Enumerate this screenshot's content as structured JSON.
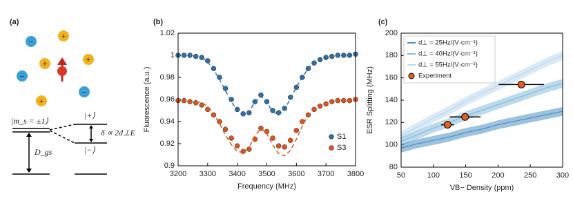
{
  "diagram": {
    "label": "(a)",
    "plus_sign": "+",
    "minus_sign": "−",
    "ground_state": "|m_s = ±1⟩",
    "upper_state": "|+⟩",
    "lower_state": "|−⟩",
    "splitting": "δ ∝ 2d⊥E",
    "zero_field": "D_gs"
  },
  "chart_data": [
    {
      "type": "scatter",
      "label": "(b)",
      "xlabel": "Frequency (MHz)",
      "ylabel": "Fluorescence (a.u.)",
      "x": [
        3200,
        3220,
        3240,
        3260,
        3280,
        3300,
        3320,
        3340,
        3360,
        3380,
        3400,
        3420,
        3440,
        3460,
        3480,
        3500,
        3520,
        3540,
        3560,
        3580,
        3600,
        3620,
        3640,
        3660,
        3680,
        3700,
        3720,
        3740,
        3760,
        3780,
        3800
      ],
      "xlim": [
        3200,
        3800
      ],
      "ylim": [
        0.9,
        1.02
      ],
      "xticks": [
        3200,
        3300,
        3400,
        3500,
        3600,
        3700,
        3800
      ],
      "yticks": [
        0.9,
        0.92,
        0.94,
        0.96,
        0.98,
        1,
        1.02
      ],
      "legend": "lower right",
      "series": [
        {
          "name": "S1",
          "color": "#2c6ea6",
          "values": [
            1.0,
            1.0,
            1.0,
            0.999,
            0.998,
            0.995,
            0.988,
            0.98,
            0.97,
            0.96,
            0.951,
            0.947,
            0.948,
            0.958,
            0.964,
            0.958,
            0.95,
            0.948,
            0.952,
            0.962,
            0.971,
            0.98,
            0.988,
            0.993,
            0.996,
            0.998,
            0.999,
            1.0,
            1.0,
            1.0,
            1.001
          ]
        },
        {
          "name": "S3",
          "color": "#d9541e",
          "values": [
            0.959,
            0.959,
            0.958,
            0.957,
            0.955,
            0.951,
            0.946,
            0.94,
            0.933,
            0.925,
            0.918,
            0.913,
            0.915,
            0.924,
            0.934,
            0.931,
            0.925,
            0.918,
            0.917,
            0.923,
            0.932,
            0.94,
            0.946,
            0.951,
            0.954,
            0.956,
            0.958,
            0.959,
            0.959,
            0.959,
            0.96
          ]
        },
        {
          "color": "#2c6ea6",
          "style": "dashed",
          "values": [
            null,
            null,
            null,
            null,
            0.998,
            0.994,
            0.987,
            0.978,
            0.968,
            0.958,
            0.95,
            0.946,
            0.949,
            0.958,
            0.963,
            0.957,
            0.949,
            0.946,
            0.951,
            0.961,
            0.971,
            0.98,
            0.988,
            0.994,
            0.997,
            0.999,
            null,
            null,
            null,
            null,
            null
          ]
        },
        {
          "color": "#d9541e",
          "style": "dashed",
          "values": [
            null,
            null,
            null,
            0.958,
            0.957,
            0.954,
            0.947,
            0.938,
            0.928,
            0.919,
            0.913,
            0.912,
            0.917,
            0.927,
            0.934,
            0.929,
            0.919,
            0.911,
            0.909,
            0.914,
            0.924,
            0.936,
            0.946,
            null,
            null,
            null,
            null,
            null,
            null,
            null,
            null
          ]
        }
      ]
    },
    {
      "type": "line",
      "label": "(c)",
      "xlabel": "VB− Density (ppm)",
      "ylabel": "ESR Splitting (MHz)",
      "x": [
        50,
        75,
        100,
        125,
        150,
        175,
        200,
        225,
        250,
        275,
        300
      ],
      "xlim": [
        50,
        300
      ],
      "ylim": [
        80,
        200
      ],
      "xticks": [
        50,
        100,
        150,
        200,
        250,
        300
      ],
      "yticks": [
        80,
        100,
        120,
        140,
        160,
        180,
        200
      ],
      "legend": "upper left",
      "series": [
        {
          "name": "d⊥ = 25Hz/(V·cm⁻¹)",
          "color": "#4a8fc2",
          "spread": 4,
          "values": [
            97,
            101,
            104,
            107,
            111,
            114,
            118,
            121,
            124,
            127,
            130
          ]
        },
        {
          "name": "d⊥ = 40Hz/(V·cm⁻¹)",
          "color": "#86b9dc",
          "spread": 4,
          "values": [
            103,
            109,
            115,
            120,
            126,
            131,
            136,
            141,
            146,
            151,
            155
          ]
        },
        {
          "name": "d⊥ = 55Hz/(V·cm⁻¹)",
          "color": "#b9d8ee",
          "spread": 4,
          "values": [
            108,
            116,
            124,
            131,
            139,
            146,
            153,
            160,
            167,
            174,
            180
          ]
        }
      ],
      "experiment": {
        "name": "Experiment",
        "color": "#e0601f",
        "x": [
          122,
          149,
          236
        ],
        "y": [
          118,
          125,
          154
        ],
        "xerr": [
          10,
          24,
          35
        ]
      }
    }
  ]
}
